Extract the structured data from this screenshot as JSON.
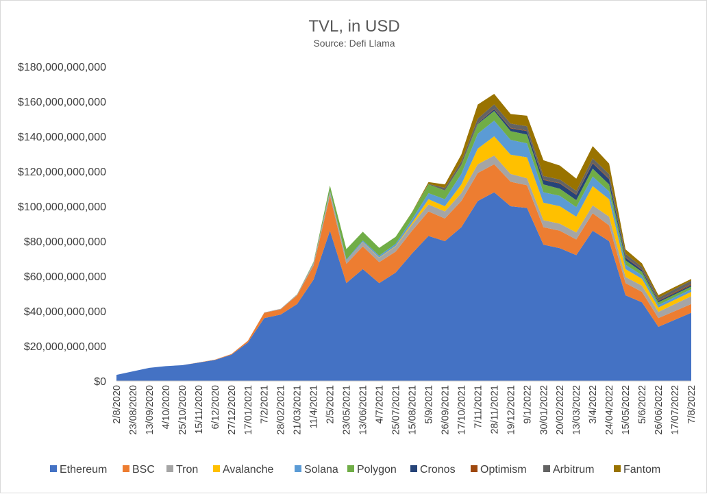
{
  "chart_data": {
    "type": "area",
    "stacked": true,
    "title": "TVL, in USD",
    "subtitle": "Source: Defi Llama",
    "xlabel": "",
    "ylabel": "",
    "ylim": [
      0,
      180000000000
    ],
    "yticks": [
      0,
      20000000000,
      40000000000,
      60000000000,
      80000000000,
      100000000000,
      120000000000,
      140000000000,
      160000000000,
      180000000000
    ],
    "ytick_labels": [
      "$0",
      "$20,000,000,000",
      "$40,000,000,000",
      "$60,000,000,000",
      "$80,000,000,000",
      "$100,000,000,000",
      "$120,000,000,000",
      "$140,000,000,000",
      "$160,000,000,000",
      "$180,000,000,000"
    ],
    "xtick_labels": [
      "2/8/2020",
      "23/08/2020",
      "13/09/2020",
      "4/10/2020",
      "25/10/2020",
      "15/11/2020",
      "6/12/2020",
      "27/12/2020",
      "17/01/2021",
      "7/2/2021",
      "28/02/2021",
      "21/03/2021",
      "11/4/2021",
      "2/5/2021",
      "23/05/2021",
      "13/06/2021",
      "4/7/2021",
      "25/07/2021",
      "15/08/2021",
      "5/9/2021",
      "26/09/2021",
      "17/10/2021",
      "7/11/2021",
      "28/11/2021",
      "19/12/2021",
      "9/1/2022",
      "30/01/2022",
      "20/02/2022",
      "13/03/2022",
      "3/4/2022",
      "24/04/2022",
      "15/05/2022",
      "5/6/2022",
      "26/06/2022",
      "17/07/2022",
      "7/8/2022"
    ],
    "grid": false,
    "legend_position": "bottom",
    "x": [
      "2/8/2020",
      "23/08/2020",
      "13/09/2020",
      "4/10/2020",
      "25/10/2020",
      "15/11/2020",
      "6/12/2020",
      "27/12/2020",
      "17/01/2021",
      "7/2/2021",
      "28/02/2021",
      "21/03/2021",
      "11/4/2021",
      "2/5/2021",
      "23/05/2021",
      "13/06/2021",
      "4/7/2021",
      "25/07/2021",
      "15/08/2021",
      "5/9/2021",
      "26/09/2021",
      "17/10/2021",
      "7/11/2021",
      "28/11/2021",
      "19/12/2021",
      "9/1/2022",
      "30/01/2022",
      "20/02/2022",
      "13/03/2022",
      "3/4/2022",
      "24/04/2022",
      "15/05/2022",
      "5/6/2022",
      "26/06/2022",
      "17/07/2022",
      "7/8/2022"
    ],
    "series": [
      {
        "name": "Ethereum",
        "color": "#4472C4",
        "values": [
          3500000000.0,
          5500000000.0,
          7500000000.0,
          8500000000.0,
          9000000000.0,
          10500000000.0,
          12000000000.0,
          15000000000.0,
          22000000000.0,
          36000000000.0,
          38000000000.0,
          44000000000.0,
          58000000000.0,
          86000000000.0,
          56000000000.0,
          64000000000.0,
          56000000000.0,
          62000000000.0,
          73000000000.0,
          83000000000.0,
          80000000000.0,
          88000000000.0,
          103000000000.0,
          108000000000.0,
          100000000000.0,
          99000000000.0,
          78000000000.0,
          76000000000.0,
          72000000000.0,
          86000000000.0,
          80000000000.0,
          49000000000.0,
          45000000000.0,
          31000000000.0,
          35000000000.0,
          39000000000.0
        ]
      },
      {
        "name": "BSC",
        "color": "#ED7D31",
        "values": [
          0.0,
          0.0,
          0.0,
          0.0,
          0.0,
          100000000.0,
          200000000.0,
          400000000.0,
          1000000000.0,
          3000000000.0,
          3000000000.0,
          5000000000.0,
          8000000000.0,
          20000000000.0,
          11000000000.0,
          13000000000.0,
          12000000000.0,
          12000000000.0,
          13000000000.0,
          14000000000.0,
          13000000000.0,
          15000000000.0,
          16000000000.0,
          16000000000.0,
          14000000000.0,
          13000000000.0,
          10000000000.0,
          10000000000.0,
          9000000000.0,
          10000000000.0,
          9000000000.0,
          7000000000.0,
          6000000000.0,
          5000000000.0,
          5000000000.0,
          5000000000.0
        ]
      },
      {
        "name": "Tron",
        "color": "#A5A5A5",
        "values": [
          0.0,
          0.0,
          0.0,
          0.0,
          0.0,
          0.0,
          0.0,
          0.0,
          0.0,
          200000000.0,
          300000000.0,
          500000000.0,
          1500000000.0,
          2500000000.0,
          2000000000.0,
          2500000000.0,
          2500000000.0,
          3000000000.0,
          3500000000.0,
          4000000000.0,
          4000000000.0,
          4500000000.0,
          5000000000.0,
          5000000000.0,
          4500000000.0,
          4000000000.0,
          4000000000.0,
          4000000000.0,
          4000000000.0,
          4500000000.0,
          5000000000.0,
          3500000000.0,
          3500000000.0,
          3500000000.0,
          4000000000.0,
          4500000000.0
        ]
      },
      {
        "name": "Avalanche",
        "color": "#FFC000",
        "values": [
          0.0,
          0.0,
          0.0,
          0.0,
          0.0,
          0.0,
          0.0,
          0.0,
          0.0,
          0.0,
          0.0,
          0.0,
          0.0,
          0.0,
          0.0,
          100000000.0,
          200000000.0,
          300000000.0,
          1000000000.0,
          3000000000.0,
          3000000000.0,
          5000000000.0,
          9000000000.0,
          11000000000.0,
          11000000000.0,
          12000000000.0,
          10000000000.0,
          10000000000.0,
          9000000000.0,
          11000000000.0,
          10000000000.0,
          4500000000.0,
          4000000000.0,
          2500000000.0,
          2500000000.0,
          2500000000.0
        ]
      },
      {
        "name": "Solana",
        "color": "#5B9BD5",
        "values": [
          0.0,
          0.0,
          0.0,
          0.0,
          0.0,
          0.0,
          0.0,
          0.0,
          0.0,
          0.0,
          0.0,
          0.0,
          100000000.0,
          300000000.0,
          500000000.0,
          800000000.0,
          1000000000.0,
          1200000000.0,
          2000000000.0,
          3500000000.0,
          4000000000.0,
          6000000000.0,
          8500000000.0,
          9000000000.0,
          8500000000.0,
          8000000000.0,
          6000000000.0,
          6000000000.0,
          5500000000.0,
          5500000000.0,
          4500000000.0,
          2500000000.0,
          2000000000.0,
          1500000000.0,
          1500000000.0,
          1500000000.0
        ]
      },
      {
        "name": "Polygon",
        "color": "#70AD47",
        "values": [
          0.0,
          0.0,
          0.0,
          0.0,
          0.0,
          0.0,
          0.0,
          0.0,
          0.0,
          0.0,
          0.0,
          100000000.0,
          500000000.0,
          3000000000.0,
          6000000000.0,
          5000000000.0,
          4500000000.0,
          4000000000.0,
          4000000000.0,
          5000000000.0,
          5000000000.0,
          5000000000.0,
          5500000000.0,
          5500000000.0,
          5000000000.0,
          5000000000.0,
          4500000000.0,
          4000000000.0,
          4000000000.0,
          4500000000.0,
          4000000000.0,
          2500000000.0,
          2000000000.0,
          1500000000.0,
          1500000000.0,
          1500000000.0
        ]
      },
      {
        "name": "Cronos",
        "color": "#264478",
        "values": [
          0.0,
          0.0,
          0.0,
          0.0,
          0.0,
          0.0,
          0.0,
          0.0,
          0.0,
          0.0,
          0.0,
          0.0,
          0.0,
          0.0,
          0.0,
          0.0,
          0.0,
          0.0,
          0.0,
          0.0,
          0.0,
          0.0,
          500000000.0,
          1000000000.0,
          1500000000.0,
          2000000000.0,
          2500000000.0,
          3000000000.0,
          3000000000.0,
          3000000000.0,
          3000000000.0,
          1500000000.0,
          1000000000.0,
          800000000.0,
          800000000.0,
          800000000.0
        ]
      },
      {
        "name": "Optimism",
        "color": "#9E480E",
        "values": [
          0.0,
          0.0,
          0.0,
          0.0,
          0.0,
          0.0,
          0.0,
          0.0,
          0.0,
          0.0,
          0.0,
          0.0,
          0.0,
          0.0,
          0.0,
          0.0,
          0.0,
          0.0,
          0.0,
          0.0,
          0.0,
          100000000.0,
          200000000.0,
          300000000.0,
          300000000.0,
          300000000.0,
          300000000.0,
          300000000.0,
          300000000.0,
          400000000.0,
          400000000.0,
          300000000.0,
          300000000.0,
          300000000.0,
          500000000.0,
          600000000.0
        ]
      },
      {
        "name": "Arbitrum",
        "color": "#636363",
        "values": [
          0.0,
          0.0,
          0.0,
          0.0,
          0.0,
          0.0,
          0.0,
          0.0,
          0.0,
          0.0,
          0.0,
          0.0,
          0.0,
          0.0,
          0.0,
          0.0,
          0.0,
          0.0,
          0.0,
          300000000.0,
          1500000000.0,
          2000000000.0,
          2500000000.0,
          2500000000.0,
          2500000000.0,
          2500000000.0,
          2000000000.0,
          2000000000.0,
          2000000000.0,
          2500000000.0,
          2500000000.0,
          2000000000.0,
          1500000000.0,
          1500000000.0,
          1800000000.0,
          2000000000.0
        ]
      },
      {
        "name": "Fantom",
        "color": "#997300",
        "values": [
          0.0,
          0.0,
          0.0,
          0.0,
          0.0,
          0.0,
          0.0,
          0.0,
          0.0,
          0.0,
          0.0,
          0.0,
          0.0,
          0.0,
          0.0,
          0.0,
          0.0,
          0.0,
          200000000.0,
          1000000000.0,
          2000000000.0,
          4000000000.0,
          8000000000.0,
          6000000000.0,
          5500000000.0,
          6000000000.0,
          9000000000.0,
          8000000000.0,
          7000000000.0,
          7000000000.0,
          6000000000.0,
          2500000000.0,
          2000000000.0,
          1500000000.0,
          1200000000.0,
          1000000000.0
        ]
      }
    ]
  }
}
